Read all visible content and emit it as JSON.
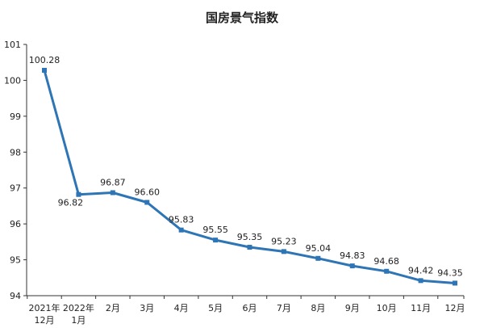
{
  "chart_data": {
    "type": "line",
    "title": "国房景气指数",
    "xlabel": "",
    "ylabel": "",
    "ylim": [
      94,
      101
    ],
    "y_ticks": [
      "94",
      "95",
      "96",
      "97",
      "98",
      "99",
      "100",
      "101"
    ],
    "grid": false,
    "legend": "none",
    "line_color": "#2e75b6",
    "categories": [
      "2021年 12月",
      "2022年 1月",
      "2月",
      "3月",
      "4月",
      "5月",
      "6月",
      "7月",
      "8月",
      "9月",
      "10月",
      "11月",
      "12月"
    ],
    "values": [
      100.28,
      96.82,
      96.87,
      96.6,
      95.83,
      95.55,
      95.35,
      95.23,
      95.04,
      94.83,
      94.68,
      94.42,
      94.35
    ],
    "data_labels": [
      "100.28",
      "96.82",
      "96.87",
      "96.60",
      "95.83",
      "95.55",
      "95.35",
      "95.23",
      "95.04",
      "94.83",
      "94.68",
      "94.42",
      "94.35"
    ]
  }
}
